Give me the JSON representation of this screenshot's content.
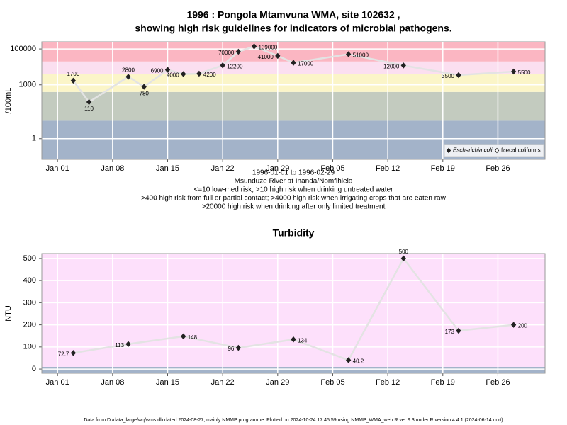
{
  "chart_data": [
    {
      "type": "line",
      "title": [
        "1996 : Pongola Mtamvuna WMA, site 102632 ,",
        "showing high risk guidelines for indicators of microbial pathogens."
      ],
      "subtitle": [
        "1996-01-01 to 1996-02-29",
        "Msunduze River at Inanda/Nomfihlelo",
        "<=10 low-med risk; >10 high risk when drinking untreated water",
        ">400 high risk from full or partial contact; >4000 high risk when irrigating crops that are eaten raw",
        ">20000 high risk when drinking after only limited treatment"
      ],
      "y_label": "/100mL",
      "log_scale": true,
      "grid": true,
      "legend": "bottom-right",
      "x": [
        "1996-01-03",
        "1996-01-05",
        "1996-01-10",
        "1996-01-12",
        "1996-01-15",
        "1996-01-17",
        "1996-01-19",
        "1996-01-22",
        "1996-01-24",
        "1996-01-26",
        "1996-01-29",
        "1996-01-31",
        "1996-02-07",
        "1996-02-14",
        "1996-02-21",
        "1996-02-28"
      ],
      "series": [
        {
          "name": "Escherichia coli",
          "color": "#222222",
          "values": [
            1700,
            110,
            2800,
            780,
            6900,
            4000,
            4200,
            12200,
            70000,
            139000,
            41000,
            17000,
            51000,
            12000,
            3500,
            5500
          ]
        },
        {
          "name": "faecal coliforms",
          "color": "#ffffff",
          "values": [
            null,
            null,
            null,
            null,
            null,
            null,
            null,
            null,
            null,
            null,
            null,
            null,
            null,
            null,
            null,
            null
          ]
        }
      ],
      "thresholds": [
        10,
        400,
        4000,
        20000
      ],
      "band_colors": [
        "#a3b3c9",
        "#c3cbbf",
        "#fbf5c8",
        "#fbdff0",
        "#fbb6c2"
      ],
      "xlim": [
        "1995-12-30",
        "1996-03-03"
      ],
      "xticks": [
        {
          "value": "1996-01-01",
          "label": "Jan 01"
        },
        {
          "value": "1996-01-08",
          "label": "Jan 08"
        },
        {
          "value": "1996-01-15",
          "label": "Jan 15"
        },
        {
          "value": "1996-01-22",
          "label": "Jan 22"
        },
        {
          "value": "1996-01-29",
          "label": "Jan 29"
        },
        {
          "value": "1996-02-05",
          "label": "Feb 05"
        },
        {
          "value": "1996-02-12",
          "label": "Feb 12"
        },
        {
          "value": "1996-02-19",
          "label": "Feb 19"
        },
        {
          "value": "1996-02-26",
          "label": "Feb 26"
        }
      ],
      "ylim": [
        0.07,
        250000
      ],
      "yticks": [
        1,
        1000,
        100000
      ]
    },
    {
      "type": "line",
      "title": [
        "Turbidity"
      ],
      "y_label": "NTU",
      "log_scale": false,
      "grid": true,
      "x": [
        "1996-01-03",
        "1996-01-10",
        "1996-01-17",
        "1996-01-24",
        "1996-01-31",
        "1996-02-07",
        "1996-02-14",
        "1996-02-21",
        "1996-02-28"
      ],
      "series": [
        {
          "name": "Turbidity",
          "color": "#222222",
          "values": [
            72.7,
            113,
            148,
            96,
            134,
            40.2,
            500,
            173,
            200
          ]
        }
      ],
      "thresholds": [
        10
      ],
      "band_colors": [
        "#a3b3c9",
        "#fde0fb"
      ],
      "xlim": [
        "1995-12-30",
        "1996-03-03"
      ],
      "xticks": [
        {
          "value": "1996-01-01",
          "label": "Jan 01"
        },
        {
          "value": "1996-01-08",
          "label": "Jan 08"
        },
        {
          "value": "1996-01-15",
          "label": "Jan 15"
        },
        {
          "value": "1996-01-22",
          "label": "Jan 22"
        },
        {
          "value": "1996-01-29",
          "label": "Jan 29"
        },
        {
          "value": "1996-02-05",
          "label": "Feb 05"
        },
        {
          "value": "1996-02-12",
          "label": "Feb 12"
        },
        {
          "value": "1996-02-19",
          "label": "Feb 19"
        },
        {
          "value": "1996-02-26",
          "label": "Feb 26"
        }
      ],
      "ylim": [
        -19,
        522
      ],
      "yticks": [
        0,
        100,
        200,
        300,
        400,
        500
      ]
    }
  ],
  "footer": "Data from D:/data_large/wq/wms.db dated 2024-08-27, mainly NMMP programme. Plotted on 2024-10-24 17:45:59 using NMMP_WMA_web.R ver 9.3 under R version 4.4.1 (2024-06-14 ucrt)"
}
